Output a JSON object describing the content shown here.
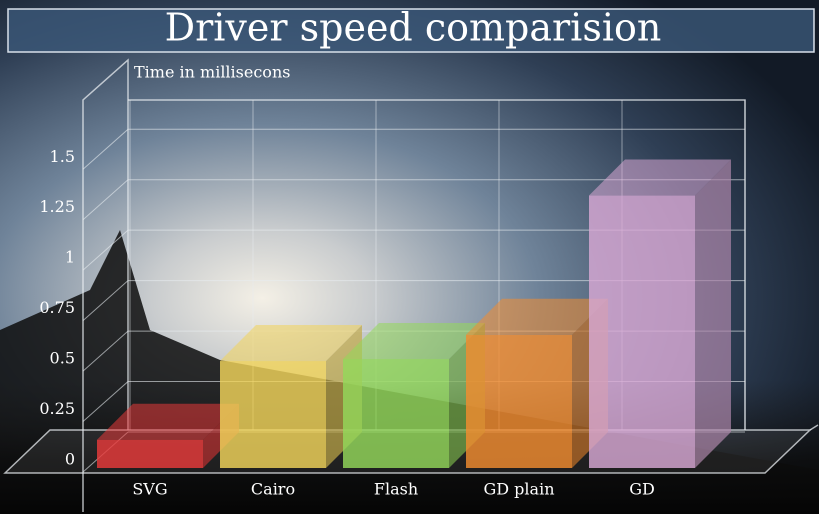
{
  "chart_data": {
    "type": "bar3d",
    "title": "Driver speed comparision",
    "y_label": "Time in millisecons",
    "categories": [
      "SVG",
      "Cairo",
      "Flash",
      "GD plain",
      "GD"
    ],
    "values": [
      0.14,
      0.53,
      0.54,
      0.66,
      1.35
    ],
    "colors": [
      "#e83a3a",
      "#f2d45a",
      "#94d85a",
      "#f28c30",
      "#d8a8d4"
    ],
    "ylim": [
      0,
      1.65
    ],
    "yticks": [
      0,
      0.25,
      0.5,
      0.75,
      1,
      1.25,
      1.5
    ],
    "grid": true
  }
}
